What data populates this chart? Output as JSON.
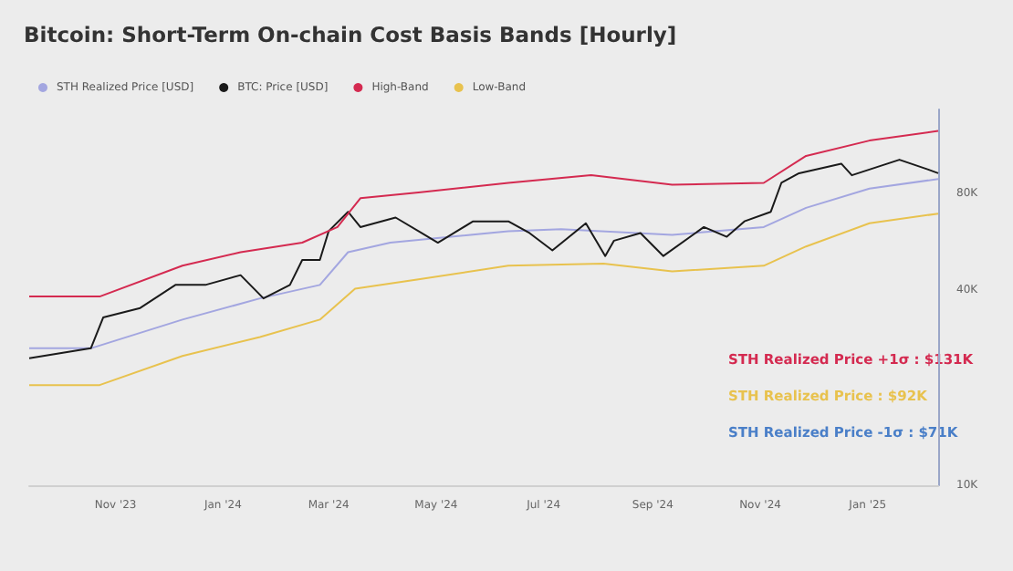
{
  "chart_data": {
    "type": "line",
    "title": "Bitcoin: Short-Term On-chain Cost Basis Bands [Hourly]",
    "xlim": [
      "2023-09-13",
      "2025-02-10"
    ],
    "xticks": [
      {
        "value": "2023-11-01",
        "label": "Nov '23"
      },
      {
        "value": "2024-01-01",
        "label": "Jan '24"
      },
      {
        "value": "2024-03-01",
        "label": "Mar '24"
      },
      {
        "value": "2024-05-01",
        "label": "May '24"
      },
      {
        "value": "2024-07-01",
        "label": "Jul '24"
      },
      {
        "value": "2024-09-01",
        "label": "Sep '24"
      },
      {
        "value": "2024-11-01",
        "label": "Nov '24"
      },
      {
        "value": "2025-01-01",
        "label": "Jan '25"
      }
    ],
    "ylim": [
      10000,
      145000
    ],
    "yticks": [
      {
        "value": 10000,
        "label": "10K"
      },
      {
        "value": 40000,
        "label": "40K"
      },
      {
        "value": 80000,
        "label": "80K"
      }
    ],
    "log": true,
    "grid": false,
    "legend": "top left",
    "series": [
      {
        "name": "STH Realized Price [USD]",
        "color": "#a3a6e0",
        "x": [
          "2023-09-13",
          "2023-10-18",
          "2023-12-09",
          "2024-01-22",
          "2024-02-25",
          "2024-03-12",
          "2024-04-05",
          "2024-06-11",
          "2024-07-11",
          "2024-09-12",
          "2024-11-03",
          "2024-11-27",
          "2025-01-02",
          "2025-02-10"
        ],
        "values": [
          26500,
          26500,
          32500,
          37800,
          41600,
          52500,
          56200,
          61000,
          61900,
          59400,
          62800,
          72000,
          82600,
          88400
        ]
      },
      {
        "name": "BTC: Price [USD]",
        "color": "#1a1a1a",
        "x": [
          "2023-09-13",
          "2023-10-18",
          "2023-10-25",
          "2023-11-15",
          "2023-12-05",
          "2023-12-22",
          "2024-01-11",
          "2024-01-24",
          "2024-02-08",
          "2024-02-15",
          "2024-02-25",
          "2024-03-01",
          "2024-03-12",
          "2024-03-19",
          "2024-04-08",
          "2024-05-02",
          "2024-05-22",
          "2024-06-11",
          "2024-06-23",
          "2024-07-06",
          "2024-07-25",
          "2024-08-05",
          "2024-08-10",
          "2024-08-25",
          "2024-09-07",
          "2024-09-30",
          "2024-10-13",
          "2024-10-23",
          "2024-11-07",
          "2024-11-13",
          "2024-11-23",
          "2024-12-17",
          "2024-12-23",
          "2025-01-19",
          "2025-02-04",
          "2025-02-10"
        ],
        "values": [
          24700,
          26500,
          33000,
          35300,
          41600,
          41600,
          44600,
          37800,
          41600,
          49700,
          49700,
          61000,
          70000,
          62800,
          67200,
          56200,
          65400,
          65400,
          60200,
          53200,
          64500,
          51100,
          57000,
          60200,
          51100,
          62800,
          58600,
          65400,
          70000,
          86000,
          92100,
          98600,
          90800,
          101400,
          94700,
          92100
        ]
      },
      {
        "name": "High-Band",
        "color": "#d42a50",
        "x": [
          "2023-09-13",
          "2023-10-23",
          "2023-12-09",
          "2024-01-11",
          "2024-02-15",
          "2024-03-06",
          "2024-03-19",
          "2024-04-21",
          "2024-06-11",
          "2024-07-28",
          "2024-09-12",
          "2024-11-03",
          "2024-11-27",
          "2025-01-02",
          "2025-02-10"
        ],
        "values": [
          38300,
          38300,
          47700,
          52500,
          56200,
          62800,
          77100,
          80300,
          86000,
          90800,
          84900,
          86000,
          104200,
          116200,
          124500
        ]
      },
      {
        "name": "Low-Band",
        "color": "#e8c24e",
        "x": [
          "2023-09-13",
          "2023-10-23",
          "2023-12-09",
          "2024-01-22",
          "2024-02-25",
          "2024-03-16",
          "2024-04-21",
          "2024-06-11",
          "2024-08-04",
          "2024-09-12",
          "2024-11-03",
          "2024-11-27",
          "2025-01-02",
          "2025-02-10"
        ],
        "values": [
          20400,
          20400,
          25100,
          28700,
          32500,
          40500,
          43300,
          47700,
          48400,
          45800,
          47700,
          54700,
          64500,
          69100
        ]
      }
    ],
    "annotations": [
      "STH Realized Price +1σ : $131K",
      "STH Realized Price : $92K",
      "STH Realized Price -1σ : $71K"
    ]
  }
}
